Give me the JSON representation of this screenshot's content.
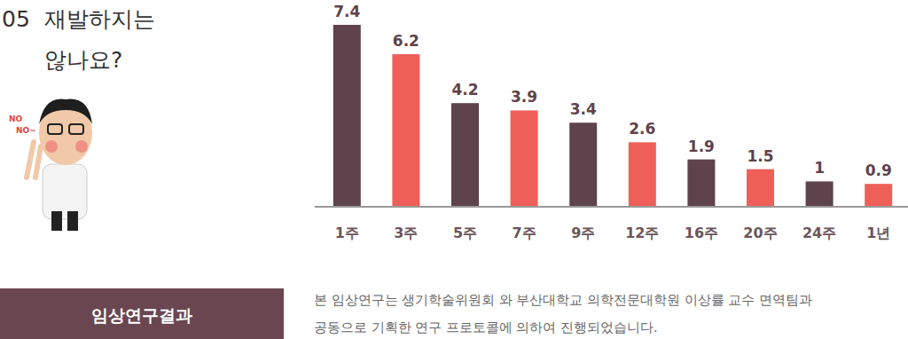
{
  "heading": {
    "number": "05",
    "lines": [
      "재발하지는",
      "않나요?"
    ]
  },
  "mascot_text": [
    "NO",
    "NO~"
  ],
  "button": {
    "label": "임상연구결과"
  },
  "note": {
    "lines": [
      "본 임상연구는 생기학술위원회 와 부산대학교 의학전문대학원 이상률 교수 면역팀과",
      "공동으로 기획한 연구 프로토콜에 의하여 진행되었습니다."
    ]
  },
  "chart_data": {
    "type": "bar",
    "categories": [
      "1주",
      "3주",
      "5주",
      "7주",
      "9주",
      "12주",
      "16주",
      "20주",
      "24주",
      "1년"
    ],
    "values": [
      7.4,
      6.2,
      4.2,
      3.9,
      3.4,
      2.6,
      1.9,
      1.5,
      1,
      0.9
    ],
    "colors": [
      "#5e434c",
      "#ee5f58",
      "#5e434c",
      "#ee5f58",
      "#5e434c",
      "#ee5f58",
      "#5e434c",
      "#ee5f58",
      "#5e434c",
      "#ee5f58"
    ],
    "ylim": [
      0,
      7.4
    ],
    "data_labels": true,
    "tick_labels": "x"
  }
}
